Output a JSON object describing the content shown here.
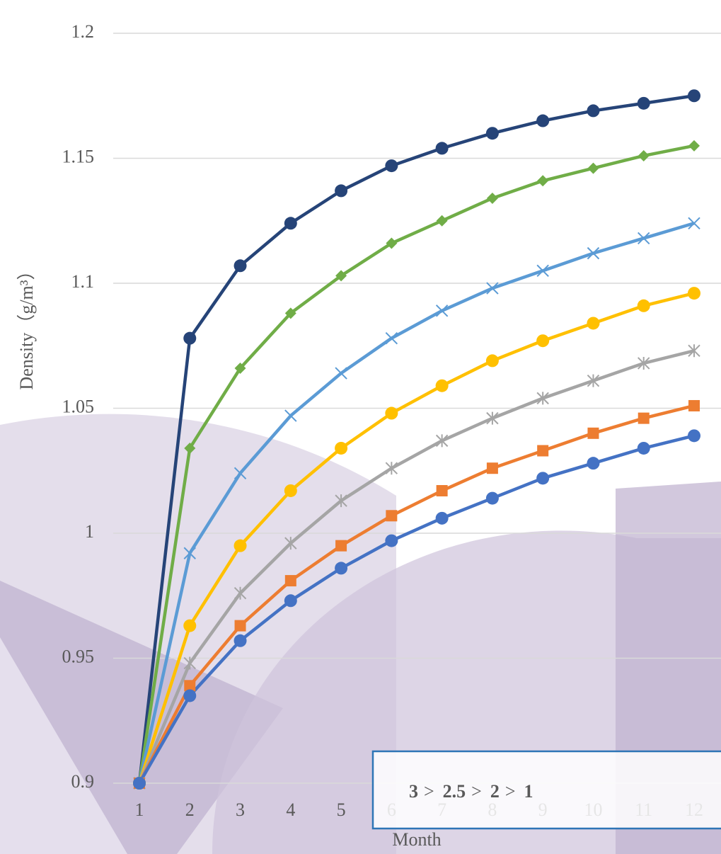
{
  "chart_data": {
    "type": "line",
    "y_label": "Density（g/m³）",
    "x_label": "Month",
    "categories": [
      "1",
      "2",
      "3",
      "4",
      "5",
      "6",
      "7",
      "8",
      "9",
      "10",
      "11",
      "12"
    ],
    "ylim": [
      0.9,
      1.2
    ],
    "yticks": [
      0.9,
      0.95,
      1,
      1.05,
      1.1,
      1.15,
      1.2
    ],
    "grid": true,
    "series": [
      {
        "color": "#264478",
        "marker": "circle",
        "values": [
          0.9,
          1.078,
          1.107,
          1.124,
          1.137,
          1.147,
          1.154,
          1.16,
          1.165,
          1.169,
          1.172,
          1.175
        ]
      },
      {
        "color": "#70ad47",
        "marker": "diamond",
        "values": [
          0.9,
          1.034,
          1.066,
          1.088,
          1.103,
          1.116,
          1.125,
          1.134,
          1.141,
          1.146,
          1.151,
          1.155
        ]
      },
      {
        "color": "#5b9bd5",
        "marker": "x",
        "values": [
          0.9,
          0.992,
          1.024,
          1.047,
          1.064,
          1.078,
          1.089,
          1.098,
          1.105,
          1.112,
          1.118,
          1.124
        ]
      },
      {
        "color": "#ffc000",
        "marker": "circle",
        "values": [
          0.9,
          0.963,
          0.995,
          1.017,
          1.034,
          1.048,
          1.059,
          1.069,
          1.077,
          1.084,
          1.091,
          1.096
        ]
      },
      {
        "color": "#a5a5a5",
        "marker": "star",
        "values": [
          0.9,
          0.948,
          0.976,
          0.996,
          1.013,
          1.026,
          1.037,
          1.046,
          1.054,
          1.061,
          1.068,
          1.073
        ]
      },
      {
        "color": "#ed7d31",
        "marker": "square",
        "values": [
          0.9,
          0.939,
          0.963,
          0.981,
          0.995,
          1.007,
          1.017,
          1.026,
          1.033,
          1.04,
          1.046,
          1.051
        ]
      },
      {
        "color": "#4472c4",
        "marker": "circle",
        "values": [
          0.9,
          0.935,
          0.957,
          0.973,
          0.986,
          0.997,
          1.006,
          1.014,
          1.022,
          1.028,
          1.034,
          1.039
        ]
      }
    ],
    "annotation": {
      "border_color": "#2e75b6",
      "parts": [
        {
          "text": "3",
          "color": "#264478"
        },
        {
          "text": ">",
          "color": "#000000"
        },
        {
          "text": "2.5",
          "color": "#70ad47"
        },
        {
          "text": ">",
          "color": "#000000"
        },
        {
          "text": "2",
          "color": "#5b9bd5"
        },
        {
          "text": ">",
          "color": "#000000"
        },
        {
          "text": "1",
          "color": "#ffc000"
        }
      ]
    }
  }
}
